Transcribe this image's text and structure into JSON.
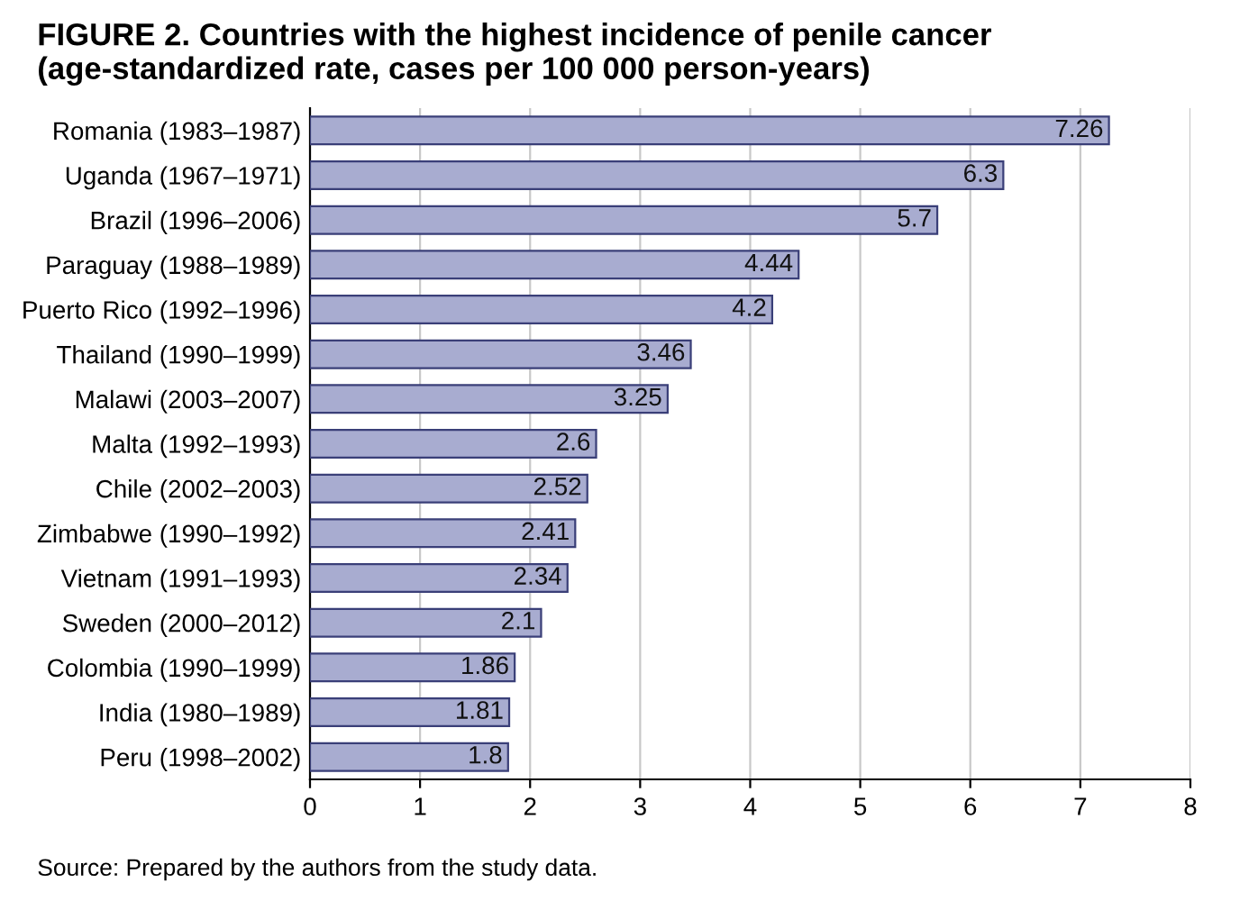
{
  "chart_data": {
    "type": "bar",
    "orientation": "horizontal",
    "title": "FIGURE 2. Countries with the highest incidence of penile cancer (age-standardized rate, cases per 100 000 person-years)",
    "categories": [
      "Romania (1983–1987)",
      "Uganda (1967–1971)",
      "Brazil (1996–2006)",
      "Paraguay (1988–1989)",
      "Puerto Rico (1992–1996)",
      "Thailand (1990–1999)",
      "Malawi (2003–2007)",
      "Malta (1992–1993)",
      "Chile (2002–2003)",
      "Zimbabwe (1990–1992)",
      "Vietnam (1991–1993)",
      "Sweden (2000–2012)",
      "Colombia (1990–1999)",
      "India (1980–1989)",
      "Peru (1998–2002)"
    ],
    "values": [
      7.26,
      6.3,
      5.7,
      4.44,
      4.2,
      3.46,
      3.25,
      2.6,
      2.52,
      2.41,
      2.34,
      2.1,
      1.86,
      1.81,
      1.8
    ],
    "color": "#a8acd0",
    "xlim": [
      0,
      8
    ],
    "xticks": [
      0,
      1,
      2,
      3,
      4,
      5,
      6,
      7,
      8
    ],
    "grid": "x",
    "data_labels": true,
    "annotations": [
      "Source: Prepared by the authors from the study data."
    ]
  }
}
